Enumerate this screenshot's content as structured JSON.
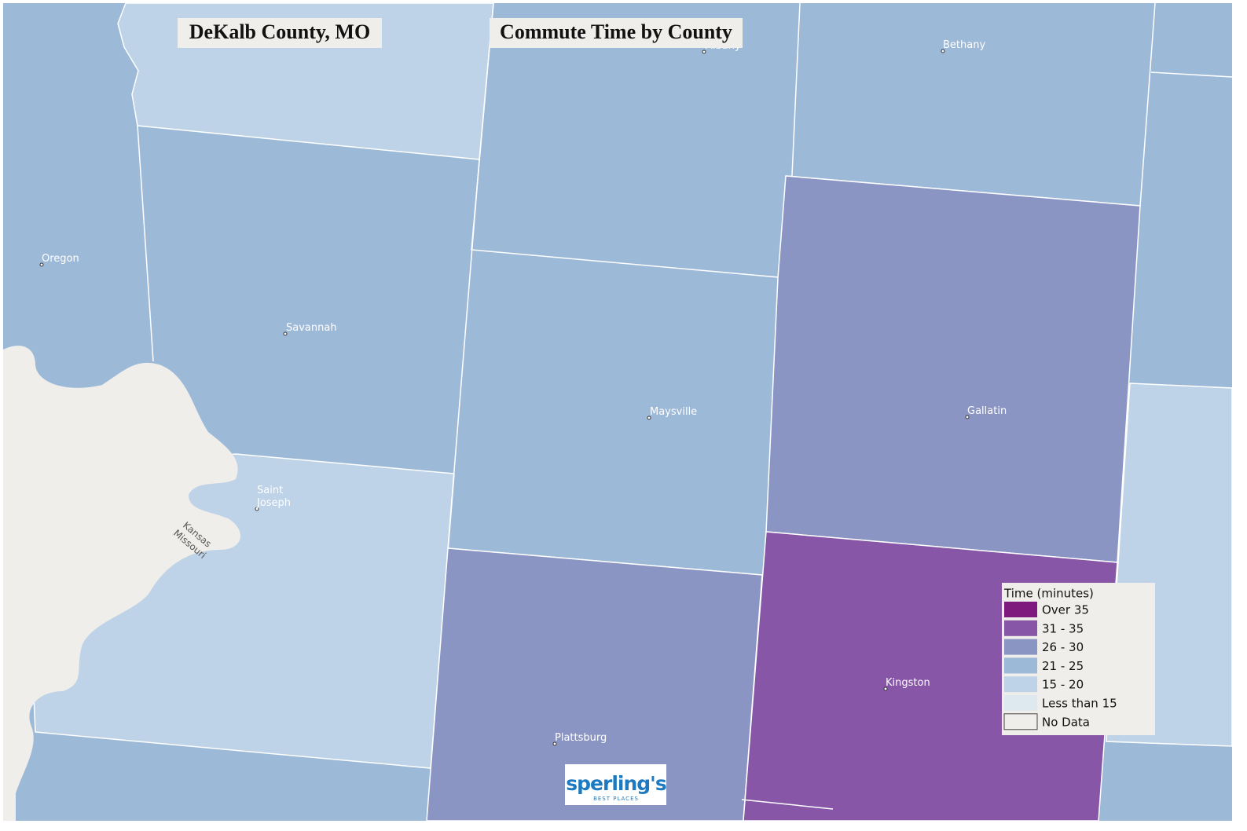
{
  "header": {
    "title": "DeKalb County, MO",
    "subtitle": "Commute Time by County"
  },
  "places": [
    {
      "label": "Albany"
    },
    {
      "label": "Bethany"
    },
    {
      "label": "Oregon"
    },
    {
      "label": "Savannah"
    },
    {
      "label": "Maysville"
    },
    {
      "label": "Gallatin"
    },
    {
      "label": "Saint Joseph"
    },
    {
      "label": "Kingston"
    },
    {
      "label": "Plattsburg"
    }
  ],
  "rivers": [
    {
      "label": "Kansas"
    },
    {
      "label": "Missouri"
    }
  ],
  "legend": {
    "title": "Time (minutes)",
    "items": [
      {
        "label": "Over 35",
        "color": "#7e1a7e"
      },
      {
        "label": "31 - 35",
        "color": "#8756a6"
      },
      {
        "label": "26 - 30",
        "color": "#8a95c4"
      },
      {
        "label": "21 - 25",
        "color": "#9db9d8"
      },
      {
        "label": "15 - 20",
        "color": "#bed3e7"
      },
      {
        "label": "Less than 15",
        "color": "#dde9ef"
      },
      {
        "label": "No Data",
        "color": "#f0eeea"
      }
    ]
  },
  "logo": {
    "name": "sperling's",
    "tagline": "BEST PLACES"
  }
}
